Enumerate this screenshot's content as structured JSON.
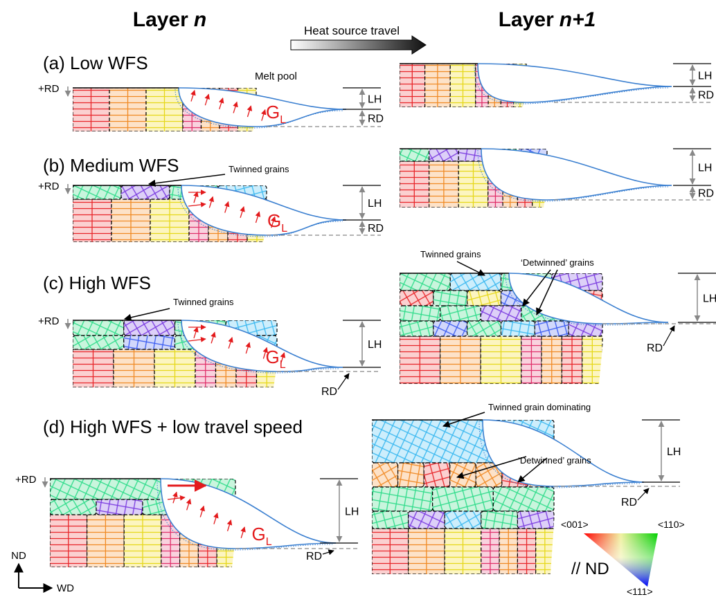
{
  "headers": [
    {
      "text": "Layer",
      "var": "n"
    },
    {
      "text": "Layer",
      "var": "n+1"
    }
  ],
  "heat_source": "Heat source travel",
  "panels": [
    {
      "label": "(a) Low WFS",
      "left": {
        "rd_sign": "+RD",
        "lh": "LH",
        "rd": "RD",
        "g": "G",
        "g_sub": "L",
        "melt_pool": "Melt pool"
      },
      "right": {
        "lh": "LH",
        "rd": "RD"
      }
    },
    {
      "label": "(b) Medium WFS",
      "left": {
        "rd_sign": "+RD",
        "lh": "LH",
        "rd": "RD",
        "g": "G",
        "g_sub": "L",
        "callouts": [
          "Twinned grains"
        ]
      },
      "right": {
        "lh": "LH",
        "rd": "RD"
      }
    },
    {
      "label": "(c) High WFS",
      "left": {
        "rd_sign": "+RD",
        "lh": "LH",
        "rd": "RD",
        "g": "G",
        "g_sub": "L",
        "callouts": [
          "Twinned grains"
        ]
      },
      "right": {
        "lh": "LH",
        "rd": "RD",
        "callouts": [
          "Twinned grains",
          "‘Detwinned’ grains"
        ]
      }
    },
    {
      "label": "(d) High WFS + low travel speed",
      "left": {
        "rd_sign": "+RD",
        "lh": "LH",
        "rd": "RD",
        "g": "G",
        "g_sub": "L"
      },
      "right": {
        "lh": "LH",
        "rd": "RD",
        "callouts": [
          "Twinned grain dominating",
          "‘Detwinned’ grains"
        ]
      }
    }
  ],
  "axes": {
    "y": "ND",
    "x": "WD"
  },
  "legend": {
    "top_left": "<001>",
    "top_right": "<110>",
    "bottom": "<111>",
    "label": "// ND"
  }
}
